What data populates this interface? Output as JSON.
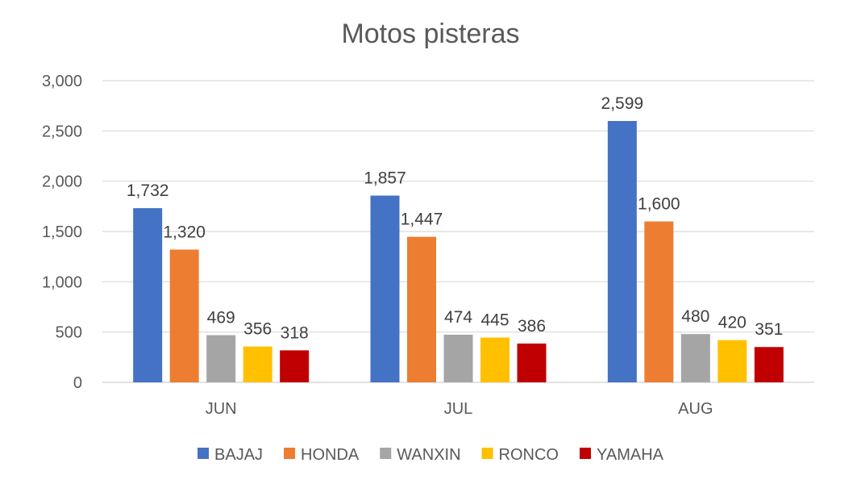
{
  "chart_data": {
    "type": "bar",
    "title": "Motos pisteras",
    "categories": [
      "JUN",
      "JUL",
      "AUG"
    ],
    "series": [
      {
        "name": "BAJAJ",
        "color": "#4472C4",
        "values": [
          1732,
          1857,
          2599
        ]
      },
      {
        "name": "HONDA",
        "color": "#ED7D31",
        "values": [
          1320,
          1447,
          1600
        ]
      },
      {
        "name": "WANXIN",
        "color": "#A5A5A5",
        "values": [
          469,
          474,
          480
        ]
      },
      {
        "name": "RONCO",
        "color": "#FFC000",
        "values": [
          356,
          445,
          420
        ]
      },
      {
        "name": "YAMAHA",
        "color": "#C00000",
        "values": [
          318,
          386,
          351
        ]
      }
    ],
    "ylim": [
      0,
      3000
    ],
    "yticks": [
      0,
      500,
      1000,
      1500,
      2000,
      2500,
      3000
    ],
    "xlabel": "",
    "ylabel": "",
    "grid": true,
    "legend_position": "bottom",
    "data_labels": true
  }
}
